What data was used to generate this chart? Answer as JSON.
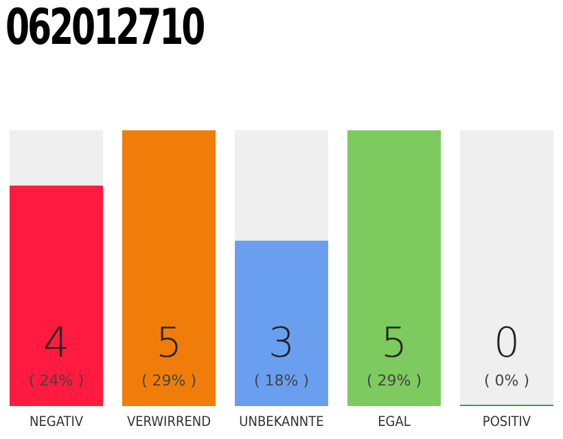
{
  "chart_data": {
    "type": "bar",
    "title": "062012710",
    "categories": [
      "NEGATIV",
      "VERWIRREND",
      "UNBEKANNTE",
      "EGAL",
      "POSITIV"
    ],
    "values": [
      4,
      5,
      3,
      5,
      0
    ],
    "colors": [
      "#ff1a40",
      "#f07d0a",
      "#6a9ff0",
      "#7dca5e",
      "#2ca84a"
    ],
    "value_labels": [
      "4\n( 24% )",
      "5\n( 29% )",
      "3\n( 18% )",
      "5\n( 29% )",
      "0\n( 0% )"
    ],
    "tick_labels": "x",
    "grid": false,
    "legend": false
  }
}
